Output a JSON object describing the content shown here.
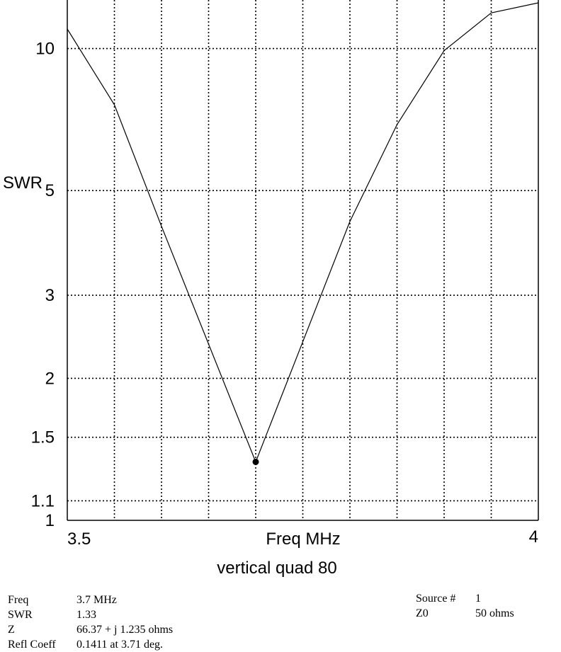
{
  "chart_data": {
    "type": "line",
    "title": "vertical quad  80",
    "xlabel": "Freq MHz",
    "ylabel": "SWR",
    "y_scale": "log",
    "xlim": [
      3.5,
      4.0
    ],
    "ylim": [
      1.0,
      12.5
    ],
    "x_tick_labels": [
      "3.5",
      "4"
    ],
    "y_ticks": [
      1,
      1.1,
      1.5,
      2,
      3,
      5,
      10
    ],
    "y_tick_labels": [
      "1",
      "1.1",
      "1.5",
      "2",
      "3",
      "5",
      "10"
    ],
    "x_gridlines": [
      3.5,
      3.55,
      3.6,
      3.65,
      3.7,
      3.75,
      3.8,
      3.85,
      3.9,
      3.95,
      4.0
    ],
    "grid": true,
    "series": [
      {
        "x": [
          3.5,
          3.55,
          3.6,
          3.7,
          3.8,
          3.85,
          3.9,
          3.95,
          4.0
        ],
        "y": [
          11.0,
          7.6,
          4.2,
          1.33,
          4.3,
          6.9,
          9.9,
          11.9,
          12.5
        ]
      }
    ],
    "marker": {
      "x": 3.7,
      "y": 1.33
    }
  },
  "readout": {
    "left": [
      {
        "label": "Freq",
        "value": "3.7 MHz"
      },
      {
        "label": "SWR",
        "value": "1.33"
      },
      {
        "label": "Z",
        "value": "66.37 + j 1.235 ohms"
      },
      {
        "label": "Refl Coeff",
        "value": "0.1411 at 3.71 deg."
      }
    ],
    "right": [
      {
        "label": "Source #",
        "value": "1"
      },
      {
        "label": "Z0",
        "value": "50 ohms"
      }
    ]
  }
}
